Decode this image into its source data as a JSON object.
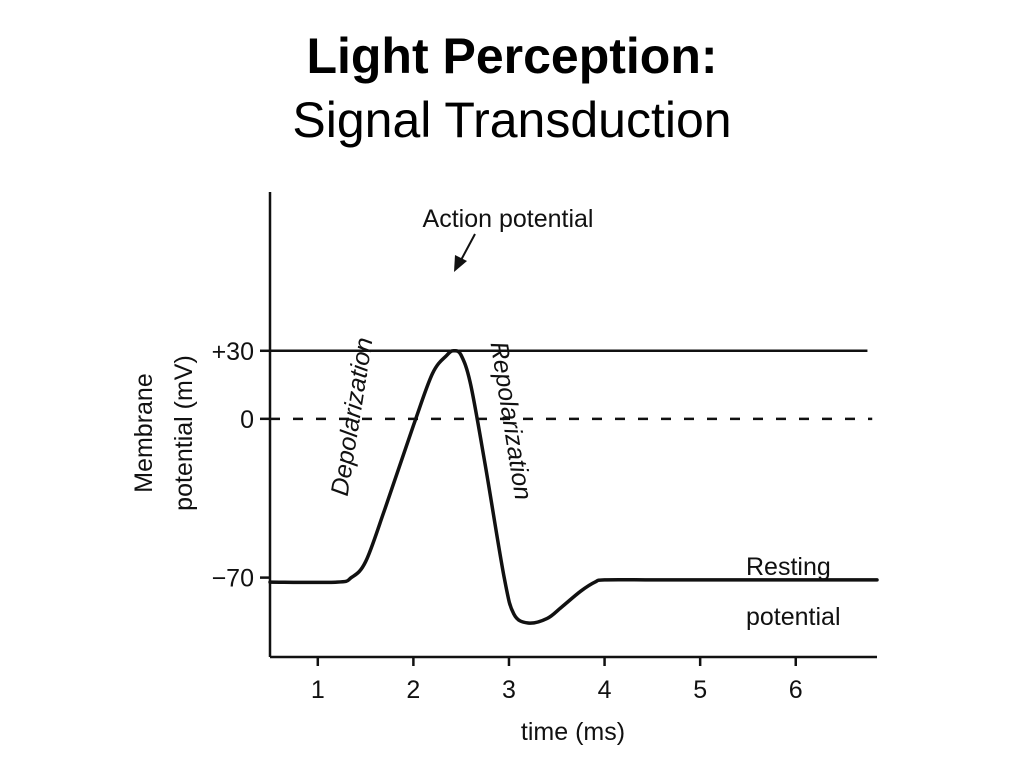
{
  "slide": {
    "title": "Light Perception:",
    "subtitle": "Signal Transduction"
  },
  "chart_data": {
    "type": "line",
    "title": "",
    "xlabel": "time (ms)",
    "ylabel_line1": "Membrane",
    "ylabel_line2": "potential (mV)",
    "xlim": [
      0.5,
      6.85
    ],
    "ylim": [
      -105,
      100
    ],
    "x_ticks": [
      1,
      2,
      3,
      4,
      5,
      6
    ],
    "x_tick_labels": [
      "1",
      "2",
      "3",
      "4",
      "5",
      "6"
    ],
    "y_ticks": [
      30,
      0,
      -70
    ],
    "y_tick_labels": [
      "+30",
      "0",
      "−70"
    ],
    "grid": false,
    "reference_lines": [
      {
        "y": 30,
        "style": "solid",
        "x_from": 0.5,
        "x_to": 6.75
      },
      {
        "y": 0,
        "style": "dashed",
        "x_from": 0.5,
        "x_to": 6.8
      }
    ],
    "series": [
      {
        "x": [
          0.5,
          1.2,
          1.35,
          1.5,
          1.7,
          2.0,
          2.2,
          2.35,
          2.42,
          2.5,
          2.6,
          2.75,
          2.95,
          3.05,
          3.2,
          3.4,
          3.55,
          3.75,
          3.9,
          4.0,
          4.5,
          5.0,
          6.0,
          6.85
        ],
        "y": [
          -72,
          -72,
          -70,
          -63,
          -40,
          -3,
          20,
          28,
          30,
          28,
          15,
          -20,
          -70,
          -86,
          -90,
          -88,
          -83,
          -76,
          -72,
          -71,
          -71,
          -71,
          -71,
          -71
        ]
      }
    ],
    "annotations": {
      "action_potential": "Action potential",
      "depolarization": "Depolarization",
      "repolarization": "Repolarization",
      "resting_line1": "Resting",
      "resting_line2": "potential"
    }
  }
}
